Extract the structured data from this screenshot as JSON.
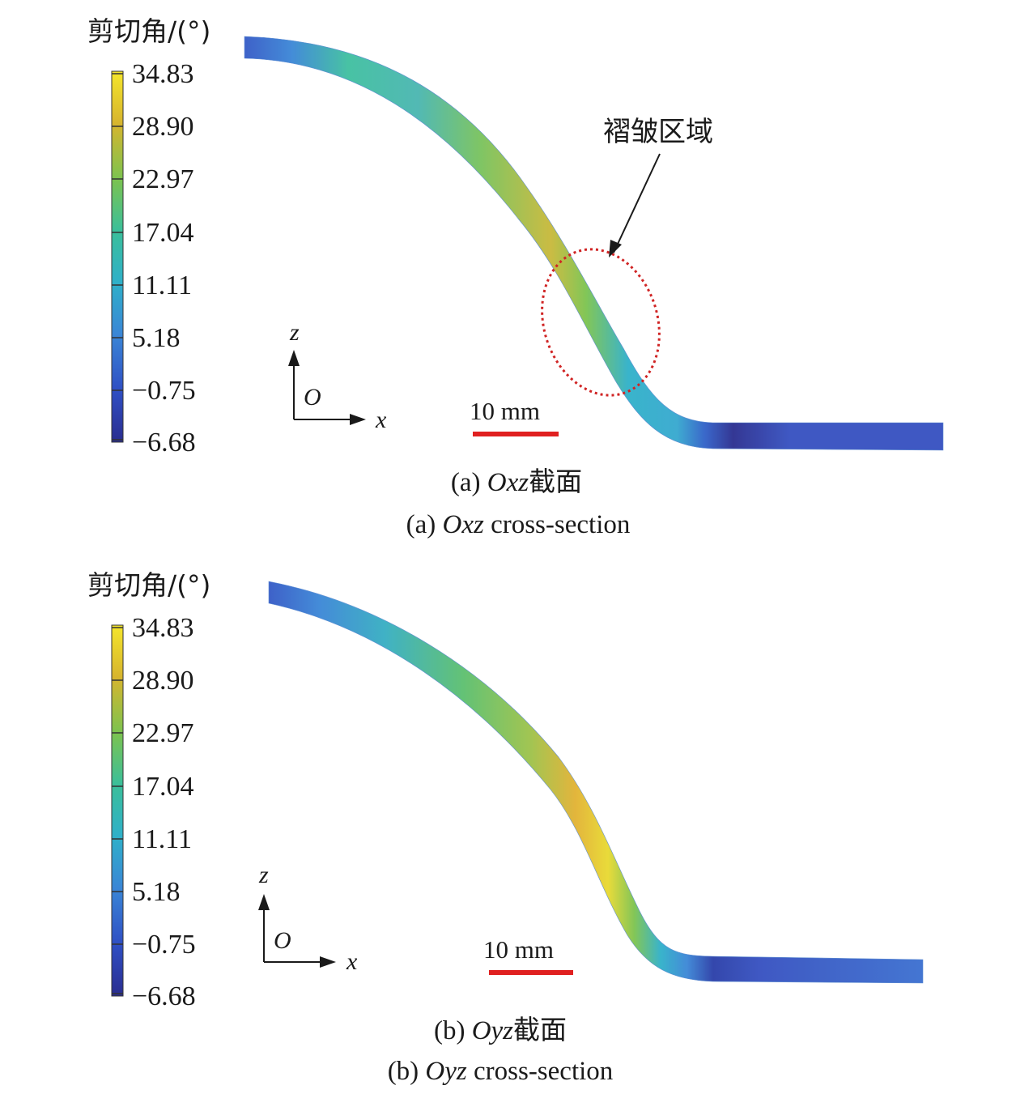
{
  "colorbar": {
    "title": "剪切角/(°)",
    "ticks": [
      "34.83",
      "28.90",
      "22.97",
      "17.04",
      "11.11",
      "5.18",
      "−0.75",
      "−6.68"
    ],
    "colors": [
      "#2a2d8f",
      "#2f4fc4",
      "#3a86d6",
      "#2fb0c9",
      "#3bbf9a",
      "#7cc34f",
      "#d7b52e",
      "#f5e62b"
    ]
  },
  "panels": [
    {
      "colorbar_title": "剪切角/(°)",
      "axis_x": "x",
      "axis_z": "z",
      "origin": "O",
      "scale_bar": "10 mm",
      "callout": "褶皱区域",
      "caption_cn_prefix": "(a) ",
      "caption_cn_italic": "Oxz",
      "caption_cn_suffix": "截面",
      "caption_en_prefix": "(a) ",
      "caption_en_italic": "Oxz",
      "caption_en_suffix": " cross-section"
    },
    {
      "colorbar_title": "剪切角/(°)",
      "axis_x": "x",
      "axis_z": "z",
      "origin": "O",
      "scale_bar": "10 mm",
      "caption_cn_prefix": "(b) ",
      "caption_cn_italic": "Oyz",
      "caption_cn_suffix": "截面",
      "caption_en_prefix": "(b) ",
      "caption_en_italic": "Oyz",
      "caption_en_suffix": " cross-section"
    }
  ],
  "scale_bar_color": "#e02020",
  "callout_ellipse_color": "#d02424"
}
